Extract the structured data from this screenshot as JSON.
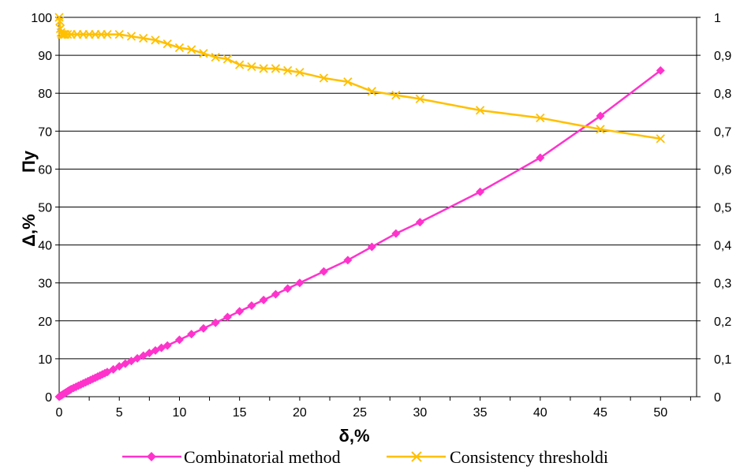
{
  "chart_data": {
    "type": "line",
    "xlabel": "δ,%",
    "ylabel_left": "Δ,%",
    "ylabel_left_extra": "Пу",
    "xlim": [
      0,
      53
    ],
    "ylim_left": [
      0,
      100
    ],
    "ylim_right": [
      0,
      1
    ],
    "x_ticks": [
      0,
      5,
      10,
      15,
      20,
      25,
      30,
      35,
      40,
      45,
      50
    ],
    "y_ticks_left": [
      0,
      10,
      20,
      30,
      40,
      50,
      60,
      70,
      80,
      90,
      100
    ],
    "y_ticks_right": [
      "0",
      "0,1",
      "0,2",
      "0,3",
      "0,4",
      "0,5",
      "0,6",
      "0,7",
      "0,8",
      "0,9",
      "1"
    ],
    "grid": "horizontal",
    "legend_position": "bottom",
    "series": [
      {
        "name": "Combinatorial method",
        "axis": "left",
        "color": "#ff33cc",
        "marker": "diamond",
        "x": [
          0,
          0.1,
          0.2,
          0.3,
          0.4,
          0.5,
          0.6,
          0.7,
          0.8,
          0.9,
          1,
          1.2,
          1.4,
          1.6,
          1.8,
          2,
          2.2,
          2.4,
          2.6,
          2.8,
          3,
          3.2,
          3.4,
          3.6,
          3.8,
          4,
          4.5,
          5,
          5.5,
          6,
          6.5,
          7,
          7.5,
          8,
          8.5,
          9,
          10,
          11,
          12,
          13,
          14,
          15,
          16,
          17,
          18,
          19,
          20,
          22,
          24,
          26,
          28,
          30,
          35,
          40,
          45,
          50
        ],
        "values": [
          0,
          0.2,
          0.4,
          0.6,
          0.8,
          1.0,
          1.2,
          1.4,
          1.6,
          1.8,
          2.0,
          2.3,
          2.6,
          2.9,
          3.2,
          3.5,
          3.8,
          4.1,
          4.4,
          4.7,
          5.0,
          5.3,
          5.6,
          5.9,
          6.2,
          6.5,
          7.2,
          8.0,
          8.7,
          9.4,
          10.1,
          10.8,
          11.5,
          12.2,
          12.9,
          13.5,
          15.0,
          16.5,
          18.0,
          19.5,
          21.0,
          22.5,
          24.0,
          25.5,
          27.0,
          28.5,
          30.0,
          33.0,
          36.0,
          39.5,
          43.0,
          46.0,
          54.0,
          63.0,
          74.0,
          86.0
        ]
      },
      {
        "name": "Consistency thresholdi",
        "axis": "right",
        "color": "#ffc000",
        "marker": "x",
        "x": [
          0,
          0.05,
          0.1,
          0.15,
          0.2,
          0.3,
          0.4,
          0.5,
          0.7,
          1,
          1.5,
          2,
          2.5,
          3,
          3.5,
          4,
          5,
          6,
          7,
          8,
          9,
          10,
          11,
          12,
          13,
          14,
          15,
          16,
          17,
          18,
          19,
          20,
          22,
          24,
          26,
          28,
          30,
          35,
          40,
          45,
          50
        ],
        "values": [
          1.0,
          0.99,
          0.97,
          0.96,
          0.955,
          0.955,
          0.955,
          0.955,
          0.955,
          0.955,
          0.955,
          0.955,
          0.955,
          0.955,
          0.955,
          0.955,
          0.955,
          0.95,
          0.945,
          0.94,
          0.93,
          0.92,
          0.915,
          0.905,
          0.895,
          0.89,
          0.875,
          0.87,
          0.865,
          0.865,
          0.86,
          0.855,
          0.84,
          0.83,
          0.805,
          0.795,
          0.785,
          0.755,
          0.735,
          0.705,
          0.68
        ]
      }
    ]
  }
}
